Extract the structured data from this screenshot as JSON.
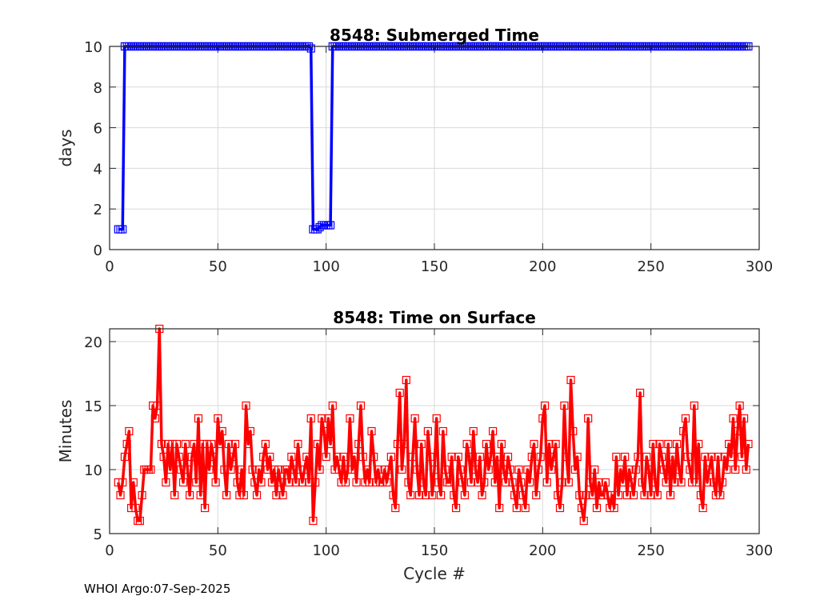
{
  "footer": "WHOI Argo:07-Sep-2025",
  "colors": {
    "top_series": "#0000ff",
    "bottom_series": "#ff0000",
    "grid": "#d9d9d9",
    "axis": "#262626"
  },
  "chart_data": [
    {
      "type": "line",
      "title": "8548: Submerged Time",
      "xlabel": "",
      "ylabel": "days",
      "xlim": [
        0,
        300
      ],
      "ylim": [
        0,
        10
      ],
      "xticks": [
        "0",
        "50",
        "100",
        "150",
        "200",
        "250",
        "300"
      ],
      "yticks": [
        "0",
        "2",
        "4",
        "6",
        "8",
        "10"
      ],
      "grid": true,
      "marker": "square",
      "x_start": 4,
      "values": [
        1,
        1,
        1,
        10,
        10,
        10,
        10,
        10,
        10,
        10,
        10,
        10,
        10,
        10,
        10,
        10,
        10,
        10,
        10,
        10,
        10,
        10,
        10,
        10,
        10,
        10,
        10,
        10,
        10,
        10,
        10,
        10,
        10,
        10,
        10,
        10,
        10,
        10,
        10,
        10,
        10,
        10,
        10,
        10,
        10,
        10,
        10,
        10,
        10,
        10,
        10,
        10,
        10,
        10,
        10,
        10,
        10,
        10,
        10,
        10,
        10,
        10,
        10,
        10,
        10,
        10,
        10,
        10,
        10,
        10,
        10,
        10,
        10,
        10,
        10,
        10,
        10,
        10,
        10,
        10,
        10,
        10,
        10,
        10,
        10,
        10,
        10,
        10,
        10,
        9.9,
        1,
        1,
        1,
        1.1,
        1.2,
        1.2,
        1.2,
        1.2,
        1.2,
        10,
        10,
        10,
        10,
        10,
        10,
        10,
        10,
        10,
        10,
        10,
        10,
        10,
        10,
        10,
        10,
        10,
        10,
        10,
        10,
        10,
        10,
        10,
        10,
        10,
        10,
        10,
        10,
        10,
        10,
        10,
        10,
        10,
        10,
        10,
        10,
        10,
        10,
        10,
        10,
        10,
        10,
        10,
        10,
        10,
        10,
        10,
        10,
        10,
        10,
        10,
        10,
        10,
        10,
        10,
        10,
        10,
        10,
        10,
        10,
        10,
        10,
        10,
        10,
        10,
        10,
        10,
        10,
        10,
        10,
        10,
        10,
        10,
        10,
        10,
        10,
        10,
        10,
        10,
        10,
        10,
        10,
        10,
        10,
        10,
        10,
        10,
        10,
        10,
        10,
        10,
        10,
        10,
        10,
        10,
        10,
        10,
        10,
        10,
        10,
        10,
        10,
        10,
        10,
        10,
        10,
        10,
        10,
        10,
        10,
        10,
        10,
        10,
        10,
        10,
        10,
        10,
        10,
        10,
        10,
        10,
        10,
        10,
        10,
        10,
        10,
        10,
        10,
        10,
        10,
        10,
        10,
        10,
        10,
        10,
        10,
        10,
        10,
        10,
        10,
        10,
        10,
        10,
        10,
        10,
        10,
        10,
        10,
        10,
        10,
        10,
        10,
        10,
        10,
        10,
        10,
        10,
        10,
        10,
        10,
        10,
        10,
        10,
        10,
        10,
        10,
        10,
        10,
        10,
        10,
        10,
        10,
        10,
        10,
        10,
        10,
        10,
        10,
        10,
        10,
        10,
        10,
        10,
        10,
        10,
        10,
        10,
        10,
        10,
        10,
        10,
        10,
        10
      ]
    },
    {
      "type": "line",
      "title": "8548: Time on Surface",
      "xlabel": "Cycle #",
      "ylabel": "Minutes",
      "xlim": [
        0,
        300
      ],
      "ylim": [
        5,
        21
      ],
      "xticks": [
        "0",
        "50",
        "100",
        "150",
        "200",
        "250",
        "300"
      ],
      "yticks": [
        "5",
        "10",
        "15",
        "20"
      ],
      "grid": true,
      "marker": "square",
      "x_start": 4,
      "values": [
        9,
        8,
        9,
        11,
        12,
        13,
        7,
        9,
        7,
        6,
        6,
        8,
        10,
        10,
        10,
        10,
        15,
        14,
        15,
        21,
        12,
        11,
        9,
        12,
        10,
        12,
        8,
        12,
        11,
        10,
        9,
        12,
        10,
        8,
        11,
        12,
        9,
        14,
        8,
        12,
        7,
        12,
        10,
        12,
        11,
        9,
        14,
        12,
        13,
        10,
        8,
        12,
        10,
        11,
        12,
        9,
        8,
        10,
        8,
        15,
        12,
        13,
        10,
        9,
        8,
        10,
        9,
        11,
        12,
        10,
        11,
        9,
        10,
        8,
        10,
        9,
        8,
        10,
        10,
        9,
        11,
        10,
        9,
        12,
        10,
        9,
        10,
        11,
        9,
        14,
        6,
        9,
        12,
        10,
        14,
        13,
        11,
        14,
        12,
        15,
        10,
        11,
        10,
        9,
        11,
        9,
        10,
        14,
        10,
        11,
        9,
        12,
        15,
        11,
        9,
        10,
        9,
        13,
        11,
        9,
        10,
        9,
        9,
        10,
        9,
        10,
        11,
        8,
        7,
        12,
        16,
        10,
        12,
        17,
        9,
        8,
        11,
        14,
        10,
        8,
        12,
        9,
        8,
        13,
        11,
        8,
        10,
        14,
        9,
        8,
        13,
        10,
        9,
        9,
        11,
        8,
        7,
        11,
        10,
        9,
        8,
        12,
        11,
        9,
        13,
        10,
        9,
        11,
        8,
        9,
        12,
        10,
        11,
        13,
        9,
        11,
        7,
        12,
        10,
        9,
        11,
        10,
        9,
        8,
        7,
        10,
        9,
        8,
        7,
        10,
        9,
        11,
        12,
        8,
        10,
        11,
        14,
        15,
        9,
        12,
        10,
        11,
        12,
        8,
        7,
        9,
        15,
        11,
        9,
        17,
        13,
        10,
        11,
        8,
        7,
        6,
        8,
        14,
        9,
        8,
        10,
        7,
        9,
        8,
        8,
        9,
        8,
        7,
        8,
        7,
        11,
        8,
        10,
        9,
        11,
        8,
        10,
        9,
        8,
        10,
        11,
        16,
        9,
        8,
        11,
        10,
        8,
        12,
        9,
        8,
        12,
        11,
        10,
        9,
        12,
        8,
        11,
        9,
        12,
        10,
        9,
        13,
        14,
        11,
        10,
        9,
        15,
        9,
        12,
        8,
        7,
        11,
        9,
        10,
        11,
        9,
        8,
        11,
        8,
        9,
        11,
        10,
        12,
        11,
        14,
        10,
        13,
        15,
        11,
        14,
        10,
        12
      ]
    }
  ]
}
